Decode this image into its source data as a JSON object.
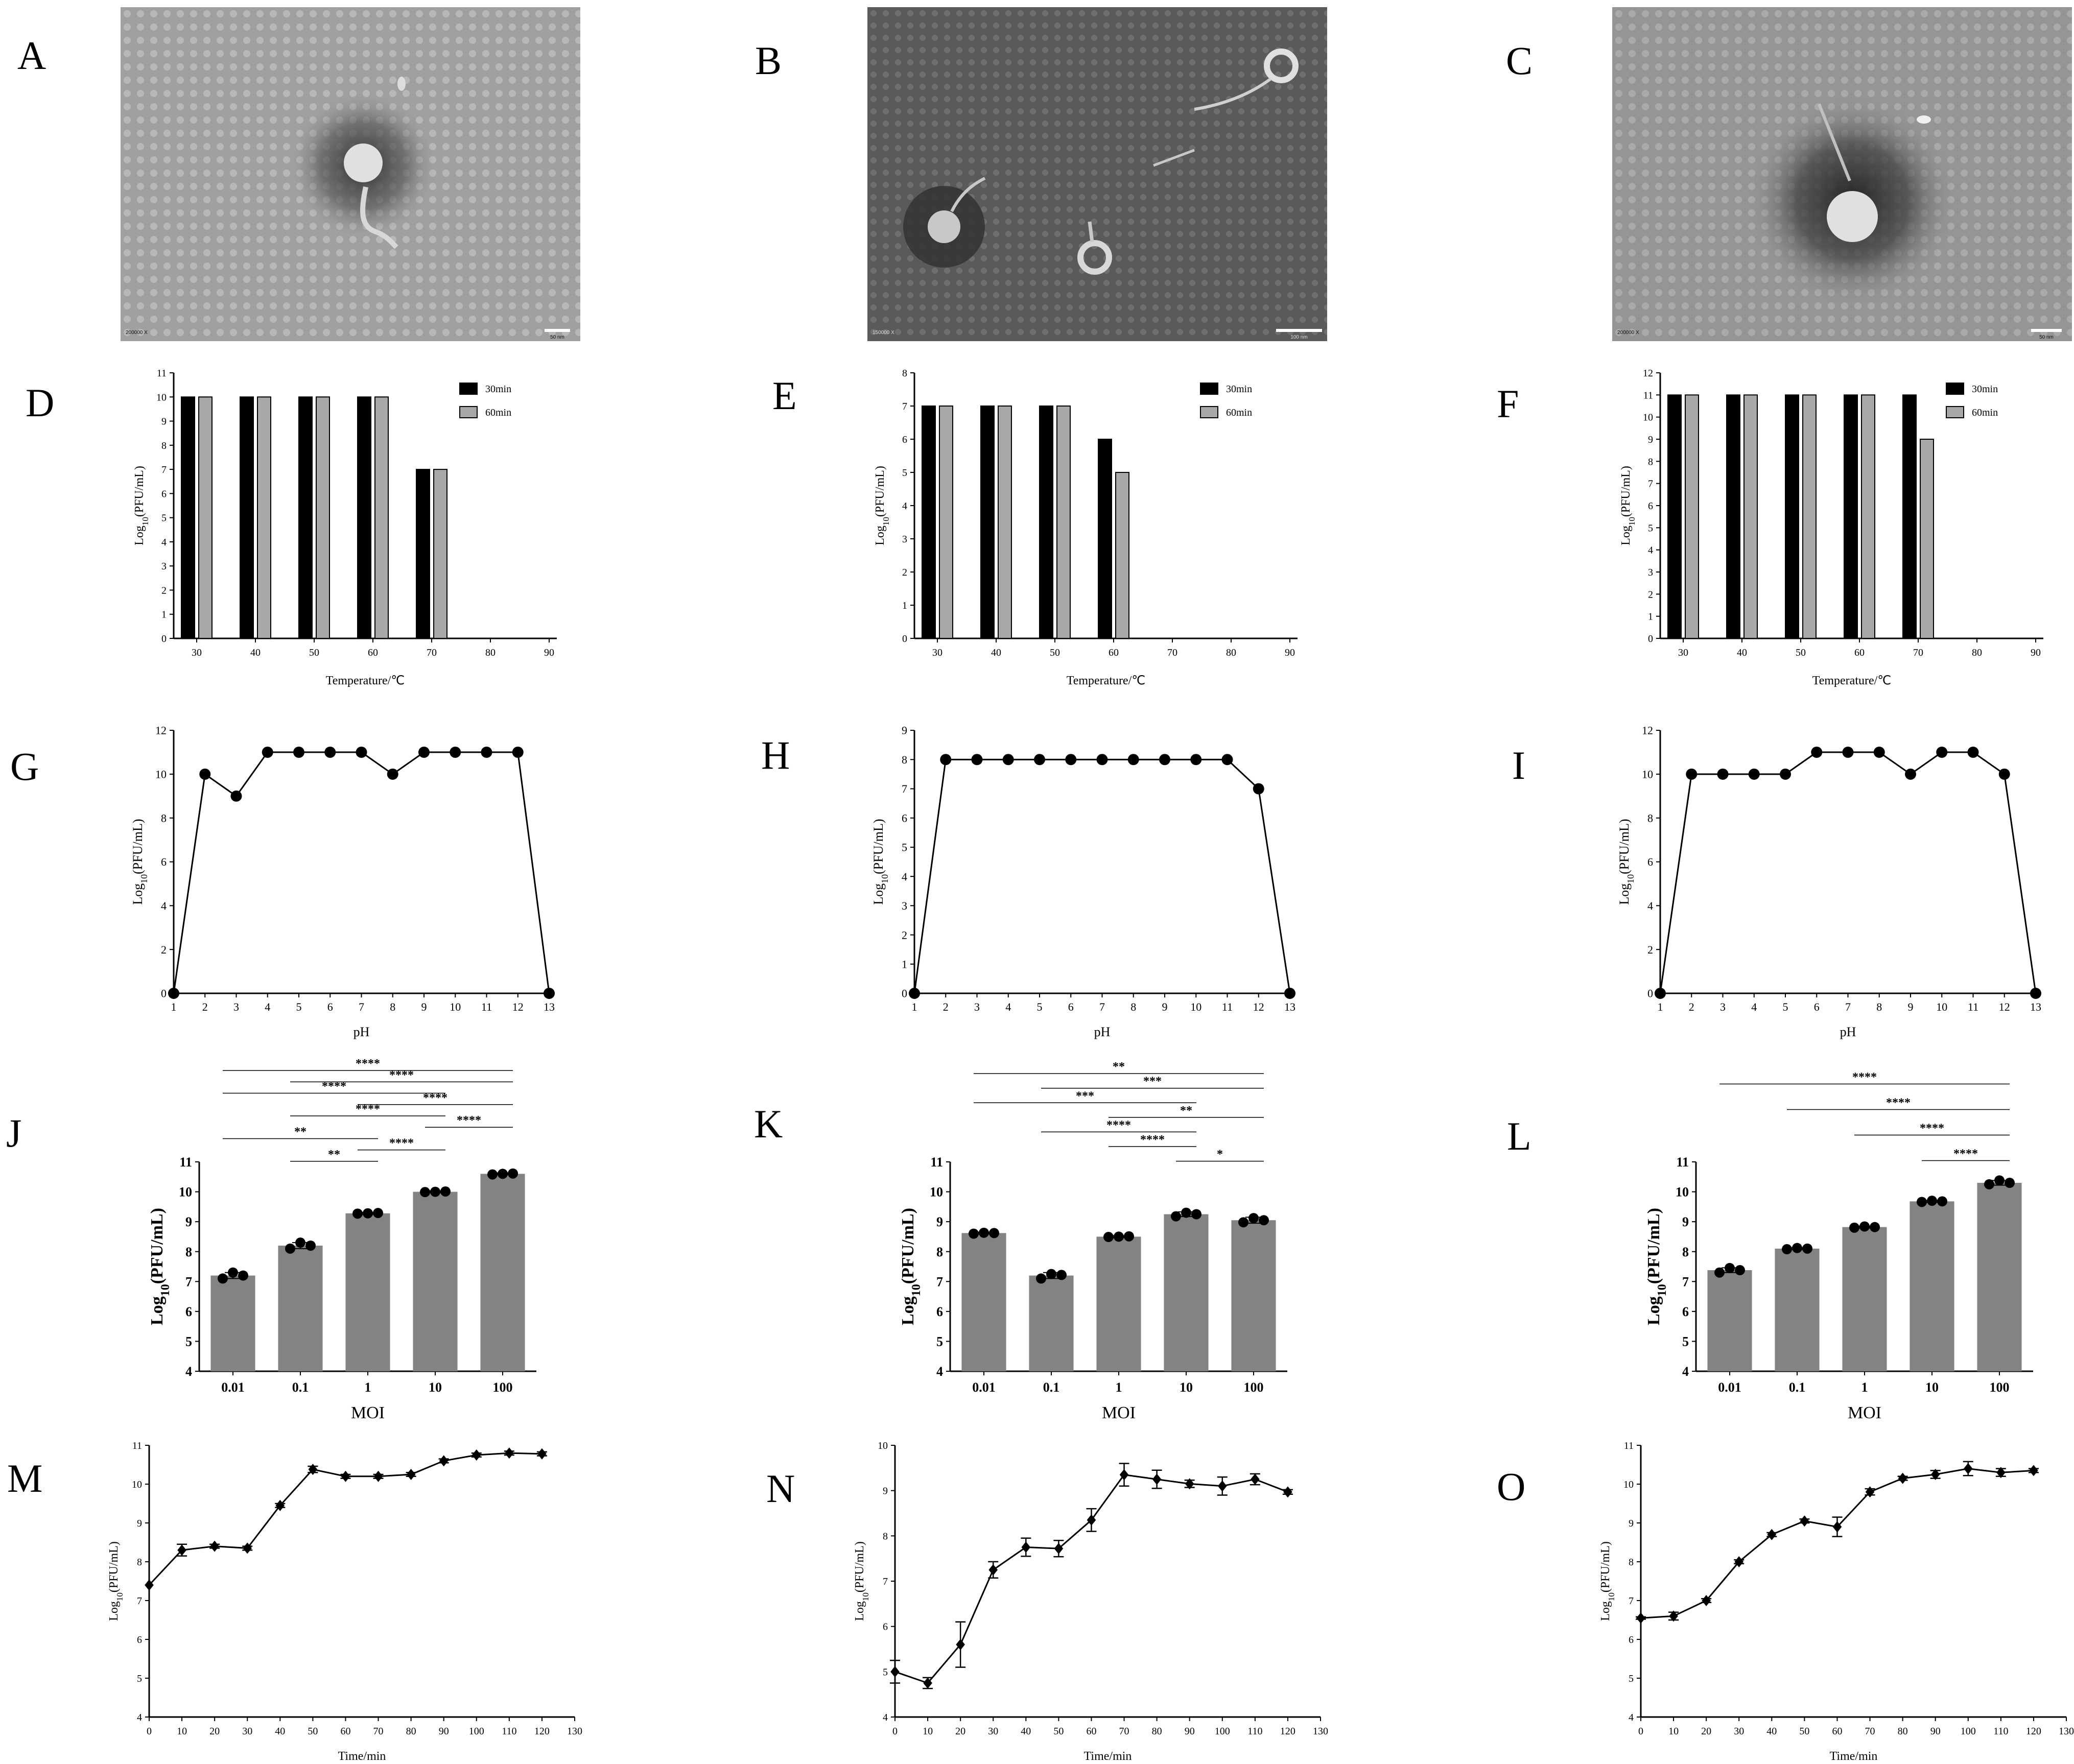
{
  "panel_letters": [
    "A",
    "B",
    "C",
    "D",
    "E",
    "F",
    "G",
    "H",
    "I",
    "J",
    "K",
    "L",
    "M",
    "N",
    "O"
  ],
  "micrographs": [
    {
      "letter": "A",
      "scale_text": "50 nm",
      "info_text": "200000 X"
    },
    {
      "letter": "B",
      "scale_text": "100 nm",
      "info_text": "150000 X"
    },
    {
      "letter": "C",
      "scale_text": "50 nm",
      "info_text": "200000 X"
    }
  ],
  "chart_data": [
    {
      "id": "D",
      "type": "bar",
      "categories": [
        "30",
        "40",
        "50",
        "60",
        "70",
        "80",
        "90"
      ],
      "series": [
        {
          "name": "30min",
          "color": "#000000",
          "values": [
            10,
            10,
            10,
            10,
            7,
            0,
            0
          ]
        },
        {
          "name": "60min",
          "color": "#a8a8a8",
          "values": [
            10,
            10,
            10,
            10,
            7,
            0,
            0
          ]
        }
      ],
      "xlabel": "Temperature/℃",
      "ylabel_main": "Log",
      "ylabel_sub": "10",
      "ylabel_tail": "(PFU/mL)",
      "ylim": [
        0,
        11
      ],
      "yticks": [
        0,
        1,
        2,
        3,
        4,
        5,
        6,
        7,
        8,
        9,
        10,
        11
      ],
      "legend": "top-right"
    },
    {
      "id": "E",
      "type": "bar",
      "categories": [
        "30",
        "40",
        "50",
        "60",
        "70",
        "80",
        "90"
      ],
      "series": [
        {
          "name": "30min",
          "color": "#000000",
          "values": [
            7,
            7,
            7,
            6,
            0,
            0,
            0
          ]
        },
        {
          "name": "60min",
          "color": "#a8a8a8",
          "values": [
            7,
            7,
            7,
            5,
            0,
            0,
            0
          ]
        }
      ],
      "xlabel": "Temperature/℃",
      "ylabel_main": "Log",
      "ylabel_sub": "10",
      "ylabel_tail": "(PFU/mL)",
      "ylim": [
        0,
        8
      ],
      "yticks": [
        0,
        1,
        2,
        3,
        4,
        5,
        6,
        7,
        8
      ],
      "legend": "top-right"
    },
    {
      "id": "F",
      "type": "bar",
      "categories": [
        "30",
        "40",
        "50",
        "60",
        "70",
        "80",
        "90"
      ],
      "series": [
        {
          "name": "30min",
          "color": "#000000",
          "values": [
            11,
            11,
            11,
            11,
            11,
            0,
            0
          ]
        },
        {
          "name": "60min",
          "color": "#a8a8a8",
          "values": [
            11,
            11,
            11,
            11,
            9,
            0,
            0
          ]
        }
      ],
      "xlabel": "Temperature/℃",
      "ylabel_main": "Log",
      "ylabel_sub": "10",
      "ylabel_tail": "(PFU/mL)",
      "ylim": [
        0,
        12
      ],
      "yticks": [
        0,
        1,
        2,
        3,
        4,
        5,
        6,
        7,
        8,
        9,
        10,
        11,
        12
      ],
      "legend": "top-right"
    },
    {
      "id": "G",
      "type": "line",
      "x": [
        1,
        2,
        3,
        4,
        5,
        6,
        7,
        8,
        9,
        10,
        11,
        12,
        13
      ],
      "y": [
        0,
        10,
        9,
        11,
        11,
        11,
        11,
        10,
        11,
        11,
        11,
        11,
        0
      ],
      "xlabel": "pH",
      "ylabel_main": "Log",
      "ylabel_sub": "10",
      "ylabel_tail": "(PFU/mL)",
      "xlim": [
        1,
        13
      ],
      "xticks": [
        1,
        2,
        3,
        4,
        5,
        6,
        7,
        8,
        9,
        10,
        11,
        12,
        13
      ],
      "ylim": [
        0,
        12
      ],
      "yticks": [
        0,
        2,
        4,
        6,
        8,
        10,
        12
      ],
      "marker": "circle"
    },
    {
      "id": "H",
      "type": "line",
      "x": [
        1,
        2,
        3,
        4,
        5,
        6,
        7,
        8,
        9,
        10,
        11,
        12,
        13
      ],
      "y": [
        0,
        8,
        8,
        8,
        8,
        8,
        8,
        8,
        8,
        8,
        8,
        7,
        0
      ],
      "xlabel": "pH",
      "ylabel_main": "Log",
      "ylabel_sub": "10",
      "ylabel_tail": "(PFU/mL)",
      "xlim": [
        1,
        13
      ],
      "xticks": [
        1,
        2,
        3,
        4,
        5,
        6,
        7,
        8,
        9,
        10,
        11,
        12,
        13
      ],
      "ylim": [
        0,
        9
      ],
      "yticks": [
        0,
        1,
        2,
        3,
        4,
        5,
        6,
        7,
        8,
        9
      ],
      "marker": "circle"
    },
    {
      "id": "I",
      "type": "line",
      "x": [
        1,
        2,
        3,
        4,
        5,
        6,
        7,
        8,
        9,
        10,
        11,
        12,
        13
      ],
      "y": [
        0,
        10,
        10,
        10,
        10,
        11,
        11,
        11,
        10,
        11,
        11,
        10,
        0
      ],
      "xlabel": "pH",
      "ylabel_main": "Log",
      "ylabel_sub": "10",
      "ylabel_tail": "(PFU/mL)",
      "xlim": [
        1,
        13
      ],
      "xticks": [
        1,
        2,
        3,
        4,
        5,
        6,
        7,
        8,
        9,
        10,
        11,
        12,
        13
      ],
      "ylim": [
        0,
        12
      ],
      "yticks": [
        0,
        2,
        4,
        6,
        8,
        10,
        12
      ],
      "marker": "circle"
    },
    {
      "id": "J",
      "type": "bar",
      "categories": [
        "0.01",
        "0.1",
        "1",
        "10",
        "100"
      ],
      "values": [
        7.2,
        8.2,
        9.28,
        10.0,
        10.6
      ],
      "errors": [
        0.1,
        0.1,
        0.03,
        0.03,
        0.03
      ],
      "replicates": [
        [
          7.1,
          7.3,
          7.2
        ],
        [
          8.1,
          8.3,
          8.2
        ],
        [
          9.27,
          9.28,
          9.29
        ],
        [
          9.99,
          10.0,
          10.01
        ],
        [
          10.58,
          10.6,
          10.61
        ]
      ],
      "xlabel": "MOI",
      "ylabel_main": "Log",
      "ylabel_sub": "10",
      "ylabel_tail": "(PFU/mL)",
      "ylim": [
        4,
        11
      ],
      "yticks": [
        4,
        5,
        6,
        7,
        8,
        9,
        10,
        11
      ],
      "significance": [
        {
          "from": 0,
          "to": 4,
          "label": "****"
        },
        {
          "from": 1,
          "to": 4,
          "label": "****"
        },
        {
          "from": 0,
          "to": 3,
          "label": "****"
        },
        {
          "from": 2,
          "to": 4,
          "label": "****"
        },
        {
          "from": 1,
          "to": 3,
          "label": "****"
        },
        {
          "from": 3,
          "to": 4,
          "label": "****"
        },
        {
          "from": 0,
          "to": 2,
          "label": "**"
        },
        {
          "from": 2,
          "to": 3,
          "label": "****"
        },
        {
          "from": 1,
          "to": 2,
          "label": "**"
        }
      ]
    },
    {
      "id": "K",
      "type": "bar",
      "categories": [
        "0.01",
        "0.1",
        "1",
        "10",
        "100"
      ],
      "values": [
        8.62,
        7.2,
        8.5,
        9.25,
        9.05
      ],
      "errors": [
        0.03,
        0.1,
        0.03,
        0.08,
        0.1
      ],
      "replicates": [
        [
          8.6,
          8.63,
          8.62
        ],
        [
          7.1,
          7.25,
          7.22
        ],
        [
          8.49,
          8.5,
          8.51
        ],
        [
          9.18,
          9.3,
          9.25
        ],
        [
          8.98,
          9.12,
          9.05
        ]
      ],
      "xlabel": "MOI",
      "ylabel_main": "Log",
      "ylabel_sub": "10",
      "ylabel_tail": "(PFU/mL)",
      "ylim": [
        4,
        11
      ],
      "yticks": [
        4,
        5,
        6,
        7,
        8,
        9,
        10,
        11
      ],
      "significance": [
        {
          "from": 0,
          "to": 4,
          "label": "**"
        },
        {
          "from": 1,
          "to": 4,
          "label": "***"
        },
        {
          "from": 0,
          "to": 3,
          "label": "***"
        },
        {
          "from": 2,
          "to": 4,
          "label": "**"
        },
        {
          "from": 1,
          "to": 3,
          "label": "****"
        },
        {
          "from": 2,
          "to": 3,
          "label": "****"
        },
        {
          "from": 3,
          "to": 4,
          "label": "*"
        }
      ]
    },
    {
      "id": "L",
      "type": "bar",
      "categories": [
        "0.01",
        "0.1",
        "1",
        "10",
        "100"
      ],
      "values": [
        7.38,
        8.1,
        8.82,
        9.68,
        10.3
      ],
      "errors": [
        0.08,
        0.03,
        0.03,
        0.03,
        0.08
      ],
      "replicates": [
        [
          7.3,
          7.45,
          7.38
        ],
        [
          8.08,
          8.12,
          8.1
        ],
        [
          8.8,
          8.84,
          8.82
        ],
        [
          9.66,
          9.7,
          9.68
        ],
        [
          10.25,
          10.38,
          10.3
        ]
      ],
      "xlabel": "MOI",
      "ylabel_main": "Log",
      "ylabel_sub": "10",
      "ylabel_tail": "(PFU/mL)",
      "ylim": [
        4,
        11
      ],
      "yticks": [
        4,
        5,
        6,
        7,
        8,
        9,
        10,
        11
      ],
      "significance": [
        {
          "from": 0,
          "to": 4,
          "label": "****"
        },
        {
          "from": 1,
          "to": 4,
          "label": "****"
        },
        {
          "from": 2,
          "to": 4,
          "label": "****"
        },
        {
          "from": 3,
          "to": 4,
          "label": "****"
        }
      ]
    },
    {
      "id": "M",
      "type": "line",
      "x": [
        0,
        10,
        20,
        30,
        40,
        50,
        60,
        70,
        80,
        90,
        100,
        110,
        120
      ],
      "y": [
        7.4,
        8.3,
        8.4,
        8.35,
        9.45,
        10.38,
        10.2,
        10.2,
        10.25,
        10.6,
        10.75,
        10.8,
        10.78
      ],
      "errors": [
        0,
        0.15,
        0.05,
        0.05,
        0.05,
        0.08,
        0.05,
        0.05,
        0.05,
        0.05,
        0.05,
        0.05,
        0.05
      ],
      "xlabel": "Time/min",
      "ylabel_main": "Log",
      "ylabel_sub": "10",
      "ylabel_tail": "(PFU/mL)",
      "xlim": [
        0,
        130
      ],
      "xticks": [
        0,
        10,
        20,
        30,
        40,
        50,
        60,
        70,
        80,
        90,
        100,
        110,
        120,
        130
      ],
      "ylim": [
        4,
        11
      ],
      "yticks": [
        4,
        5,
        6,
        7,
        8,
        9,
        10,
        11
      ],
      "marker": "diamond"
    },
    {
      "id": "N",
      "type": "line",
      "x": [
        0,
        10,
        20,
        30,
        40,
        50,
        60,
        70,
        80,
        90,
        100,
        110,
        120
      ],
      "y": [
        5.0,
        4.75,
        5.6,
        7.25,
        7.75,
        7.72,
        8.35,
        9.35,
        9.25,
        9.15,
        9.1,
        9.25,
        8.97
      ],
      "errors": [
        0.25,
        0.12,
        0.5,
        0.18,
        0.2,
        0.18,
        0.25,
        0.25,
        0.2,
        0.08,
        0.2,
        0.12,
        0.05
      ],
      "xlabel": "Time/min",
      "ylabel_main": "Log",
      "ylabel_sub": "10",
      "ylabel_tail": "(PFU/mL)",
      "xlim": [
        0,
        130
      ],
      "xticks": [
        0,
        10,
        20,
        30,
        40,
        50,
        60,
        70,
        80,
        90,
        100,
        110,
        120,
        130
      ],
      "ylim": [
        4,
        10
      ],
      "yticks": [
        4,
        5,
        6,
        7,
        8,
        9,
        10
      ],
      "marker": "diamond"
    },
    {
      "id": "O",
      "type": "line",
      "x": [
        0,
        10,
        20,
        30,
        40,
        50,
        60,
        70,
        80,
        90,
        100,
        110,
        120
      ],
      "y": [
        6.55,
        6.6,
        7.0,
        8.0,
        8.7,
        9.05,
        8.9,
        9.8,
        10.15,
        10.25,
        10.4,
        10.3,
        10.35
      ],
      "errors": [
        0.03,
        0.1,
        0.05,
        0.05,
        0.05,
        0.05,
        0.25,
        0.08,
        0.05,
        0.1,
        0.18,
        0.1,
        0.05
      ],
      "xlabel": "Time/min",
      "ylabel_main": "Log",
      "ylabel_sub": "10",
      "ylabel_tail": "(PFU/mL)",
      "xlim": [
        0,
        130
      ],
      "xticks": [
        0,
        10,
        20,
        30,
        40,
        50,
        60,
        70,
        80,
        90,
        100,
        110,
        120,
        130
      ],
      "ylim": [
        4,
        11
      ],
      "yticks": [
        4,
        5,
        6,
        7,
        8,
        9,
        10,
        11
      ],
      "marker": "diamond"
    }
  ]
}
